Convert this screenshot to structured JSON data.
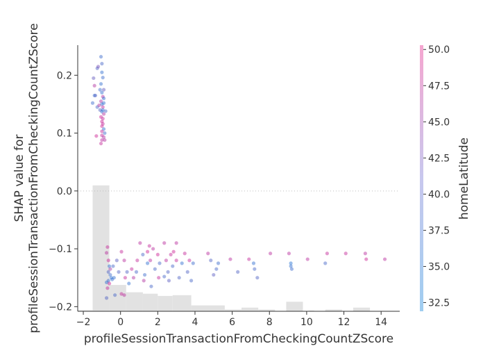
{
  "chart_data": {
    "type": "scatter",
    "subtype": "shap-dependence",
    "xlabel": "profileSessionTransactionFromCheckingCountZScore",
    "ylabel": "SHAP value for\nprofileSessionTransactionFromCheckingCountZScore",
    "xlim": [
      -2.3,
      15.0
    ],
    "ylim": [
      -0.208,
      0.252
    ],
    "x_ticks": [
      -2,
      0,
      2,
      4,
      6,
      8,
      10,
      12,
      14
    ],
    "y_ticks": [
      -0.2,
      -0.1,
      0.0,
      0.1,
      0.2
    ],
    "x_tick_labels": [
      "−2",
      "0",
      "2",
      "4",
      "6",
      "8",
      "10",
      "12",
      "14"
    ],
    "y_tick_labels": [
      "−0.2",
      "−0.1",
      "0.0",
      "0.1",
      "0.2"
    ],
    "zero_line": true,
    "grid": false,
    "colorbar": {
      "label": "homeLatitude",
      "min": 31.9,
      "max": 50.3,
      "ticks": [
        32.5,
        35.0,
        37.5,
        40.0,
        42.5,
        45.0,
        47.5,
        50.0
      ],
      "tick_labels": [
        "32.5",
        "35.0",
        "37.5",
        "40.0",
        "42.5",
        "45.0",
        "47.5",
        "50.0"
      ],
      "colors": [
        "#9fcdf0",
        "#c8c8ee",
        "#f5a6d0"
      ]
    },
    "histogram": {
      "color": "#e2e2e2",
      "bins": [
        [
          -2.3,
          -1.5,
          0.007
        ],
        [
          -1.5,
          -0.6,
          0.86
        ],
        [
          -0.6,
          0.3,
          0.18
        ],
        [
          0.3,
          1.2,
          0.13
        ],
        [
          1.2,
          2.0,
          0.12
        ],
        [
          2.0,
          2.8,
          0.105
        ],
        [
          2.8,
          3.8,
          0.11
        ],
        [
          3.8,
          5.6,
          0.04
        ],
        [
          5.6,
          6.5,
          0.012
        ],
        [
          6.5,
          7.4,
          0.025
        ],
        [
          7.4,
          8.3,
          0.012
        ],
        [
          8.9,
          9.8,
          0.065
        ],
        [
          10.1,
          10.4,
          0.005
        ],
        [
          11.0,
          11.9,
          0.012
        ],
        [
          12.5,
          13.4,
          0.025
        ]
      ]
    },
    "points": [
      [
        -1.45,
        0.195,
        38
      ],
      [
        -1.4,
        0.165,
        34
      ],
      [
        -1.35,
        0.165,
        36
      ],
      [
        -1.5,
        0.152,
        34
      ],
      [
        -1.4,
        0.182,
        46
      ],
      [
        -1.3,
        0.095,
        49
      ],
      [
        -1.25,
        0.145,
        35
      ],
      [
        -1.25,
        0.212,
        36
      ],
      [
        -1.2,
        0.215,
        40
      ],
      [
        -1.05,
        0.232,
        34
      ],
      [
        -1.0,
        0.22,
        35
      ],
      [
        -1.0,
        0.205,
        33
      ],
      [
        -0.95,
        0.196,
        34
      ],
      [
        -1.05,
        0.185,
        33
      ],
      [
        -1.1,
        0.175,
        34
      ],
      [
        -1.0,
        0.17,
        33
      ],
      [
        -0.95,
        0.163,
        47
      ],
      [
        -0.9,
        0.16,
        32.5
      ],
      [
        -1.05,
        0.155,
        46
      ],
      [
        -1.0,
        0.15,
        33
      ],
      [
        -0.95,
        0.145,
        48
      ],
      [
        -1.1,
        0.14,
        36
      ],
      [
        -1.0,
        0.137,
        33
      ],
      [
        -0.9,
        0.133,
        46
      ],
      [
        -1.05,
        0.128,
        49
      ],
      [
        -0.95,
        0.125,
        48
      ],
      [
        -1.0,
        0.12,
        49
      ],
      [
        -0.95,
        0.116,
        48
      ],
      [
        -1.0,
        0.112,
        49
      ],
      [
        -0.9,
        0.107,
        33
      ],
      [
        -0.85,
        0.1,
        34
      ],
      [
        -1.0,
        0.096,
        48
      ],
      [
        -0.9,
        0.093,
        46
      ],
      [
        -1.0,
        0.088,
        47
      ],
      [
        -1.05,
        0.082,
        48
      ],
      [
        -0.85,
        0.088,
        46
      ],
      [
        -0.95,
        0.14,
        33
      ],
      [
        -0.9,
        0.152,
        33
      ],
      [
        -1.15,
        0.148,
        46
      ],
      [
        -0.9,
        0.175,
        38
      ],
      [
        -0.8,
        0.138,
        35
      ],
      [
        -1.0,
        0.103,
        48
      ],
      [
        -0.7,
        -0.097,
        48
      ],
      [
        -0.75,
        -0.107,
        47
      ],
      [
        -0.65,
        -0.12,
        49
      ],
      [
        -0.6,
        -0.13,
        33
      ],
      [
        -0.55,
        -0.135,
        45
      ],
      [
        -0.65,
        -0.14,
        36
      ],
      [
        -0.55,
        -0.145,
        34
      ],
      [
        -0.5,
        -0.15,
        32.5
      ],
      [
        -0.65,
        -0.155,
        34
      ],
      [
        -0.75,
        -0.158,
        33
      ],
      [
        -0.7,
        -0.168,
        48
      ],
      [
        -0.75,
        -0.185,
        36
      ],
      [
        -0.6,
        -0.16,
        49
      ],
      [
        -0.45,
        -0.153,
        33
      ],
      [
        -0.35,
        -0.15,
        33
      ],
      [
        -0.3,
        -0.18,
        35
      ],
      [
        -0.2,
        -0.12,
        37
      ],
      [
        -0.1,
        -0.14,
        36
      ],
      [
        0.05,
        -0.178,
        48
      ],
      [
        0.2,
        -0.18,
        47
      ],
      [
        0.05,
        -0.105,
        48
      ],
      [
        0.2,
        -0.12,
        47
      ],
      [
        0.35,
        -0.14,
        36
      ],
      [
        0.45,
        -0.16,
        33
      ],
      [
        0.6,
        -0.135,
        48
      ],
      [
        0.7,
        -0.15,
        46
      ],
      [
        0.85,
        -0.14,
        35
      ],
      [
        0.9,
        -0.12,
        48
      ],
      [
        1.05,
        -0.09,
        47
      ],
      [
        1.2,
        -0.11,
        35
      ],
      [
        1.3,
        -0.145,
        34
      ],
      [
        1.45,
        -0.125,
        33
      ],
      [
        1.45,
        -0.105,
        49
      ],
      [
        1.55,
        -0.095,
        48
      ],
      [
        1.6,
        -0.12,
        47
      ],
      [
        1.65,
        -0.165,
        35
      ],
      [
        1.75,
        -0.1,
        47
      ],
      [
        1.85,
        -0.135,
        35
      ],
      [
        2.0,
        -0.11,
        49
      ],
      [
        2.05,
        -0.15,
        48
      ],
      [
        2.1,
        -0.125,
        35
      ],
      [
        2.35,
        -0.09,
        47
      ],
      [
        2.45,
        -0.12,
        47
      ],
      [
        2.55,
        -0.14,
        36
      ],
      [
        2.6,
        -0.155,
        37
      ],
      [
        2.7,
        -0.11,
        48
      ],
      [
        2.8,
        -0.13,
        35
      ],
      [
        2.85,
        -0.105,
        49
      ],
      [
        3.0,
        -0.09,
        47
      ],
      [
        3.0,
        -0.12,
        48
      ],
      [
        3.15,
        -0.15,
        36
      ],
      [
        3.3,
        -0.125,
        33
      ],
      [
        3.45,
        -0.108,
        48
      ],
      [
        3.6,
        -0.14,
        36
      ],
      [
        3.7,
        -0.12,
        48
      ],
      [
        3.8,
        -0.155,
        35
      ],
      [
        3.9,
        -0.125,
        34
      ],
      [
        4.7,
        -0.108,
        47
      ],
      [
        4.85,
        -0.12,
        36
      ],
      [
        5.0,
        -0.145,
        37
      ],
      [
        5.15,
        -0.135,
        35
      ],
      [
        5.25,
        -0.125,
        34
      ],
      [
        5.9,
        -0.118,
        47
      ],
      [
        6.3,
        -0.14,
        36
      ],
      [
        6.9,
        -0.118,
        48
      ],
      [
        7.15,
        -0.125,
        33
      ],
      [
        7.2,
        -0.135,
        35
      ],
      [
        7.35,
        -0.15,
        36
      ],
      [
        8.05,
        -0.108,
        47
      ],
      [
        9.05,
        -0.108,
        47
      ],
      [
        9.15,
        -0.125,
        32
      ],
      [
        9.15,
        -0.13,
        33
      ],
      [
        9.2,
        -0.135,
        34
      ],
      [
        10.05,
        -0.118,
        47
      ],
      [
        11.0,
        -0.125,
        35
      ],
      [
        11.1,
        -0.108,
        48
      ],
      [
        12.1,
        -0.108,
        48
      ],
      [
        13.15,
        -0.108,
        47
      ],
      [
        13.2,
        -0.118,
        49
      ],
      [
        14.2,
        -0.118,
        47
      ],
      [
        -0.4,
        -0.13,
        35
      ],
      [
        0.25,
        -0.15,
        48
      ],
      [
        1.25,
        -0.155,
        46
      ],
      [
        2.35,
        -0.148,
        35
      ]
    ]
  }
}
